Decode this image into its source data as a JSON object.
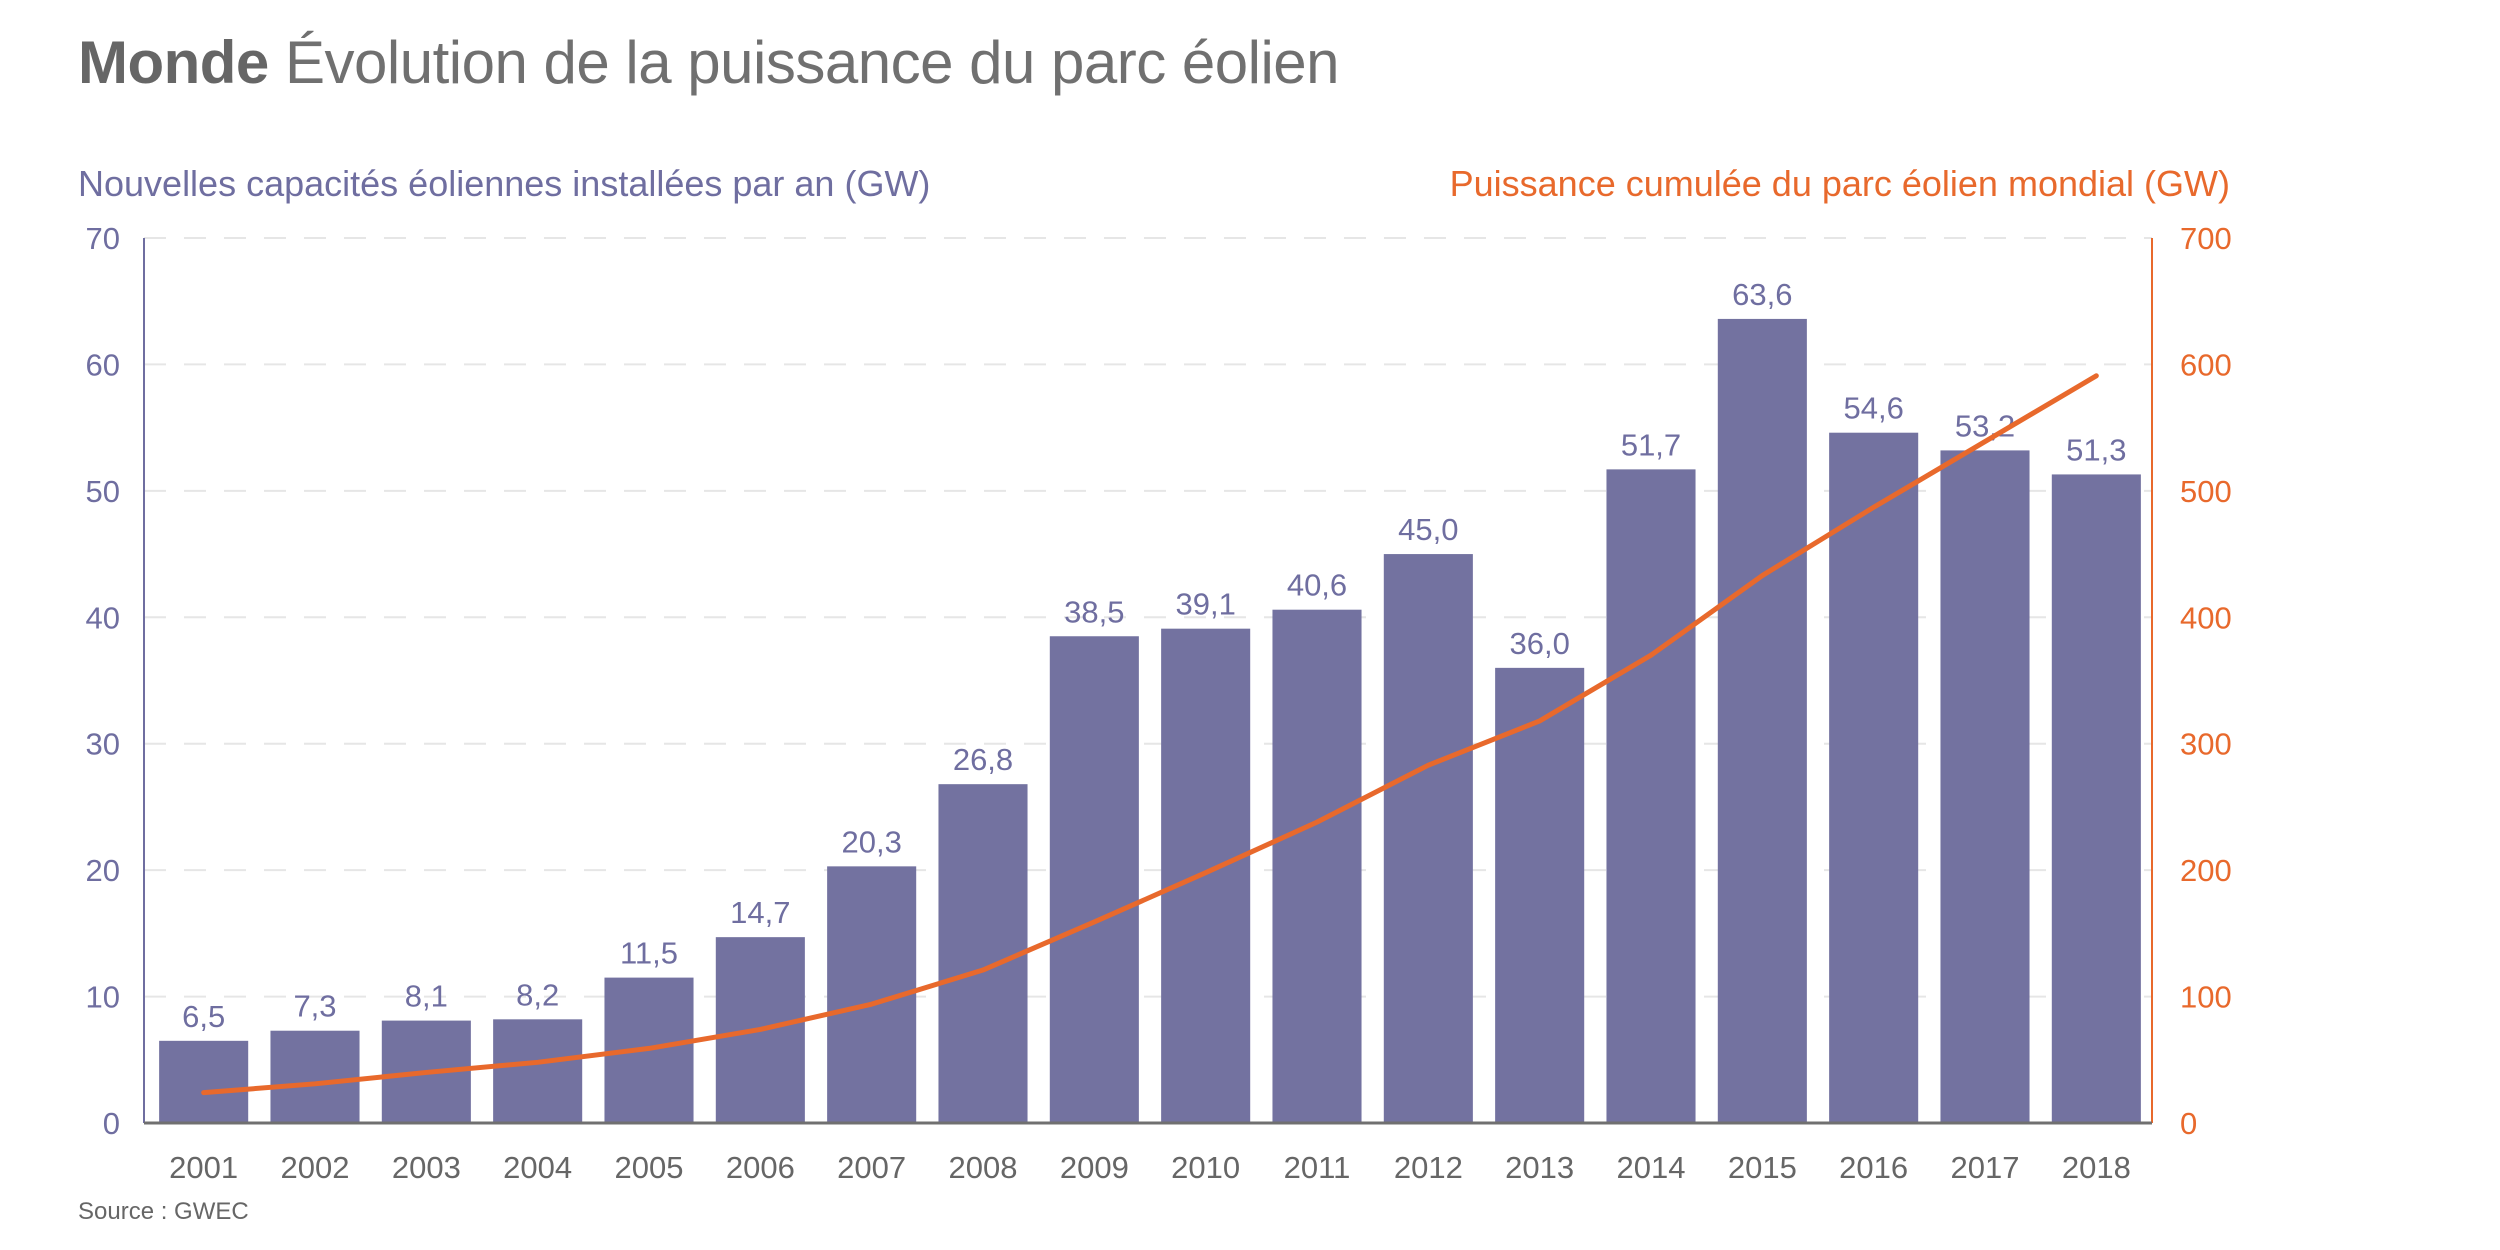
{
  "header": {
    "title_bold": "Monde",
    "title_rest": "Évolution de la puissance du parc éolien"
  },
  "source": "Source : GWEC",
  "colors": {
    "bars": "#7372a0",
    "line": "#e8692c",
    "left_axis": "#6f6ea0",
    "right_axis": "#e8692c",
    "grid": "#e6e6e6",
    "baseline": "#707070"
  },
  "chart_data": {
    "type": "bar",
    "title": "Monde Évolution de la puissance du parc éolien",
    "categories": [
      "2001",
      "2002",
      "2003",
      "2004",
      "2005",
      "2006",
      "2007",
      "2008",
      "2009",
      "2010",
      "2011",
      "2012",
      "2013",
      "2014",
      "2015",
      "2016",
      "2017",
      "2018"
    ],
    "series": [
      {
        "name": "Nouvelles capacités éoliennes installées par an (GW)",
        "type": "bar",
        "axis": "left",
        "values": [
          6.5,
          7.3,
          8.1,
          8.2,
          11.5,
          14.7,
          20.3,
          26.8,
          38.5,
          39.1,
          40.6,
          45.0,
          36.0,
          51.7,
          63.6,
          54.6,
          53.2,
          51.3
        ],
        "labels": [
          "6,5",
          "7,3",
          "8,1",
          "8,2",
          "11,5",
          "14,7",
          "20,3",
          "26,8",
          "38,5",
          "39,1",
          "40,6",
          "45,0",
          "36,0",
          "51,7",
          "63,6",
          "54,6",
          "53,2",
          "51,3"
        ]
      },
      {
        "name": "Puissance cumulée du parc éolien mondial (GW)",
        "type": "line",
        "axis": "right",
        "values": [
          24,
          31,
          40,
          48,
          59,
          74,
          94,
          121,
          159,
          198,
          238,
          283,
          318,
          370,
          433,
          487,
          539,
          591
        ]
      }
    ],
    "left_axis": {
      "label": "Nouvelles capacités éoliennes installées par an (GW)",
      "range": [
        0,
        70
      ],
      "ticks": [
        "0",
        "10",
        "20",
        "30",
        "40",
        "50",
        "60",
        "70"
      ],
      "tick_values": [
        0,
        10,
        20,
        30,
        40,
        50,
        60,
        70
      ]
    },
    "right_axis": {
      "label": "Puissance cumulée du parc éolien mondial (GW)",
      "range": [
        0,
        700
      ],
      "ticks": [
        "0",
        "100",
        "200",
        "300",
        "400",
        "500",
        "600",
        "700"
      ],
      "tick_values": [
        0,
        100,
        200,
        300,
        400,
        500,
        600,
        700
      ]
    },
    "xlabel": "",
    "grid": true,
    "legend": "none"
  }
}
